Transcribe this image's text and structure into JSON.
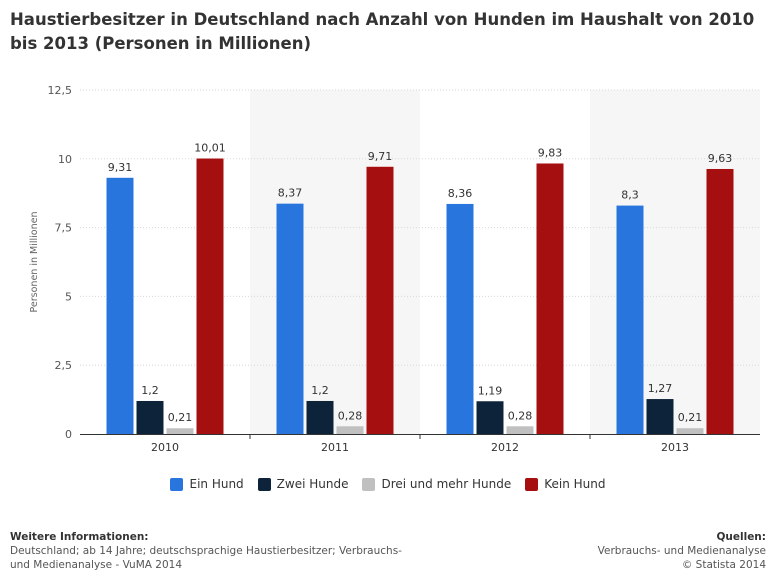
{
  "title": "Haustierbesitzer in Deutschland nach Anzahl von Hunden im Haushalt von 2010 bis 2013 (Personen in Millionen)",
  "chart_data": {
    "type": "bar",
    "title": "Haustierbesitzer in Deutschland nach Anzahl von Hunden im Haushalt von 2010 bis 2013 (Personen in Millionen)",
    "xlabel": "",
    "ylabel": "Personen in Millionen",
    "ylim": [
      0,
      12.5
    ],
    "yticks": [
      "0",
      "2,5",
      "5",
      "7,5",
      "10",
      "12,5"
    ],
    "grid": true,
    "legend_position": "bottom",
    "categories": [
      "2010",
      "2011",
      "2012",
      "2013"
    ],
    "series": [
      {
        "name": "Ein Hund",
        "color": "#2876dd",
        "values": [
          9.31,
          8.37,
          8.36,
          8.3
        ],
        "labels": [
          "9,31",
          "8,37",
          "8,36",
          "8,3"
        ]
      },
      {
        "name": "Zwei Hunde",
        "color": "#0d233a",
        "values": [
          1.2,
          1.2,
          1.19,
          1.27
        ],
        "labels": [
          "1,2",
          "1,2",
          "1,19",
          "1,27"
        ]
      },
      {
        "name": "Drei und mehr Hunde",
        "color": "#c0c0c0",
        "values": [
          0.21,
          0.28,
          0.28,
          0.21
        ],
        "labels": [
          "0,21",
          "0,28",
          "0,28",
          "0,21"
        ]
      },
      {
        "name": "Kein Hund",
        "color": "#a60f0f",
        "values": [
          10.01,
          9.71,
          9.83,
          9.63
        ],
        "labels": [
          "10,01",
          "9,71",
          "9,83",
          "9,63"
        ]
      }
    ]
  },
  "footer": {
    "left_heading": "Weitere Informationen:",
    "left_line1": "Deutschland; ab 14 Jahre; deutschsprachige Haustierbesitzer; Verbrauchs-",
    "left_line2": "und Medienanalyse - VuMA 2014",
    "right_heading": "Quellen:",
    "right_line1": "Verbrauchs- und Medienanalyse",
    "right_line2": "© Statista 2014"
  }
}
